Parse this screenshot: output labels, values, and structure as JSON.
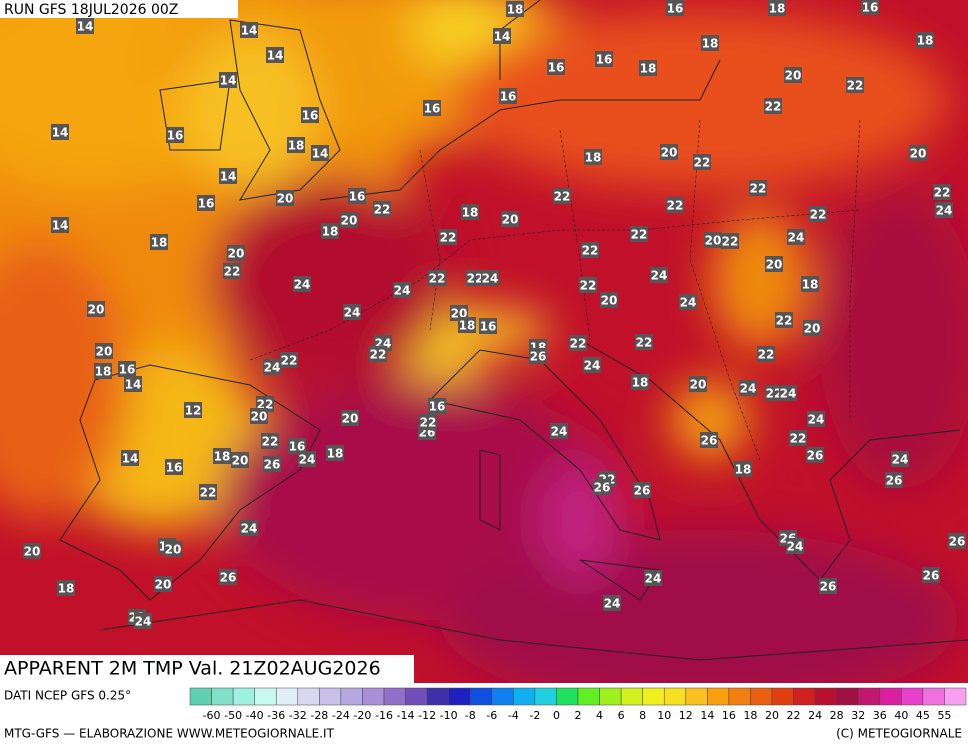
{
  "map": {
    "run": "RUN GFS 18JUL2026 00Z",
    "title": "APPARENT 2M TMP Val. 21Z02AUG2026",
    "source": "DATI NCEP GFS 0.25°",
    "footer_left": "MTG-GFS — ELABORAZIONE WWW.METEOGIORNALE.IT",
    "footer_right": "(C) METEOGIORNALE",
    "scale_labels": [
      "-60",
      "-50",
      "-40",
      "-36",
      "-32",
      "-28",
      "-24",
      "-20",
      "-16",
      "-14",
      "-12",
      "-10",
      "-8",
      "-6",
      "-4",
      "-2",
      "0",
      "2",
      "4",
      "6",
      "8",
      "10",
      "12",
      "14",
      "16",
      "18",
      "20",
      "22",
      "24",
      "28",
      "32",
      "36",
      "40",
      "45",
      "55"
    ],
    "point_values": [
      14,
      18,
      16,
      18,
      16,
      14,
      14,
      14,
      18,
      18,
      16,
      16,
      18,
      14,
      20,
      22,
      16,
      16,
      22,
      16,
      14,
      16,
      18,
      14,
      18,
      20,
      22,
      20,
      14,
      22,
      22,
      24,
      16,
      20,
      16,
      22,
      18,
      20,
      22,
      22,
      22,
      14,
      20,
      18,
      22,
      22,
      20,
      22,
      24,
      18,
      20,
      22,
      22,
      24,
      20,
      22,
      22,
      24,
      24,
      24,
      22,
      18,
      20,
      24,
      20,
      24,
      20,
      18,
      16,
      22,
      20,
      24,
      22,
      22,
      18,
      22,
      26,
      20,
      22,
      24,
      22,
      24,
      18,
      16,
      14,
      18,
      20,
      24,
      22,
      24,
      12,
      22,
      20,
      16,
      20,
      24,
      26,
      22,
      24,
      22,
      16,
      24,
      18,
      26,
      22,
      26,
      24,
      14,
      16,
      18,
      20,
      26,
      18,
      26,
      22,
      22,
      26,
      26,
      24,
      26,
      24,
      26,
      12,
      20,
      20,
      26,
      24,
      26,
      20,
      26,
      18,
      24,
      22,
      24
    ]
  }
}
